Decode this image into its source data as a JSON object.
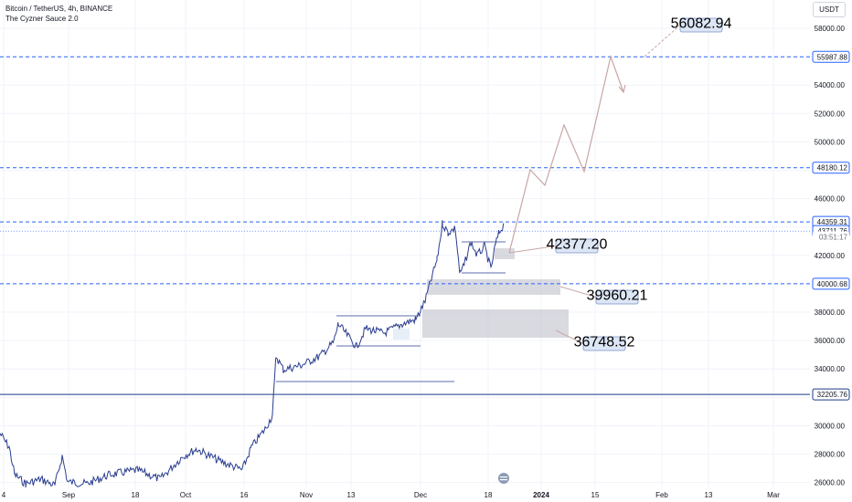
{
  "legend": {
    "title": "Bitcoin / TetherUS, 4h, BINANCE",
    "indicator": "The Cyzner Sauce 2.0"
  },
  "currency_button": "USDT",
  "colors": {
    "dashed_level": "#2962ff",
    "solid_level": "#1e3a8a",
    "candle_line": "#2a3d8f",
    "zone_fill": "#b9bcc6",
    "projection": "#c8a6a6",
    "callout_fill": "#dce6f5",
    "callout_border": "#7a93c9",
    "axis_text": "#131722",
    "grid": "#f0f3fa"
  },
  "y_axis_ticks": [
    "58000.00",
    "54000.00",
    "52000.00",
    "50000.00",
    "46000.00",
    "42000.00",
    "38000.00",
    "36000.00",
    "34000.00",
    "30000.00",
    "28000.00",
    "26000.00"
  ],
  "x_axis_ticks": [
    "4",
    "Sep",
    "18",
    "Oct",
    "16",
    "Nov",
    "13",
    "Dec",
    "18",
    "2024",
    "15",
    "Feb",
    "13",
    "Mar"
  ],
  "price_tags": [
    {
      "label": "55987.88",
      "value": 55987.88,
      "style": "dashed"
    },
    {
      "label": "48180.12",
      "value": 48180.12,
      "style": "dashed"
    },
    {
      "label": "44359.31",
      "value": 44359.31,
      "style": "dashed"
    },
    {
      "label": "43711.76",
      "value": 43711.76,
      "style": "current"
    },
    {
      "label": "03:51:17",
      "value": 43300,
      "style": "timer"
    },
    {
      "label": "40000.68",
      "value": 40000.68,
      "style": "dashed"
    },
    {
      "label": "32205.76",
      "value": 32205.76,
      "style": "solid"
    }
  ],
  "callouts": [
    {
      "label": "56082.94"
    },
    {
      "label": "42377.20"
    },
    {
      "label": "39960.21"
    },
    {
      "label": "36748.52"
    }
  ]
}
